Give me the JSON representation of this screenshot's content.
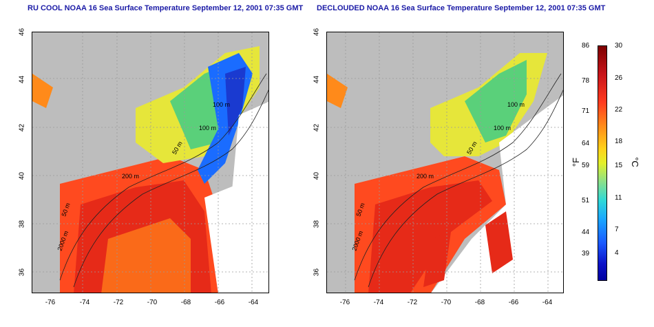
{
  "panels": [
    {
      "title": "RU COOL NOAA 16 Sea Surface Temperature September 12, 2001 07:35 GMT"
    },
    {
      "title": "DECLOUDED NOAA 16 Sea Surface Temperature September 12, 2001 07:35 GMT"
    }
  ],
  "axes": {
    "x_ticks": [
      "-76",
      "-74",
      "-72",
      "-70",
      "-68",
      "-66",
      "-64"
    ],
    "y_ticks": [
      "46",
      "44",
      "42",
      "40",
      "38",
      "36"
    ]
  },
  "contours": {
    "labels": [
      "100 m",
      "100 m",
      "50 m",
      "50 m",
      "2000 m",
      "200 m"
    ]
  },
  "colorbar": {
    "fahrenheit_ticks": [
      "86",
      "78",
      "71",
      "64",
      "59",
      "51",
      "44",
      "39"
    ],
    "celsius_ticks": [
      "30",
      "26",
      "22",
      "18",
      "15",
      "11",
      "7",
      "4"
    ],
    "fahrenheit_unit": "°F",
    "celsius_unit": "°C"
  },
  "colors": {
    "land": "#bdbdbd",
    "title": "#1a1aa6",
    "warm": "#ff4a1f",
    "cool": "#1a6cff"
  }
}
